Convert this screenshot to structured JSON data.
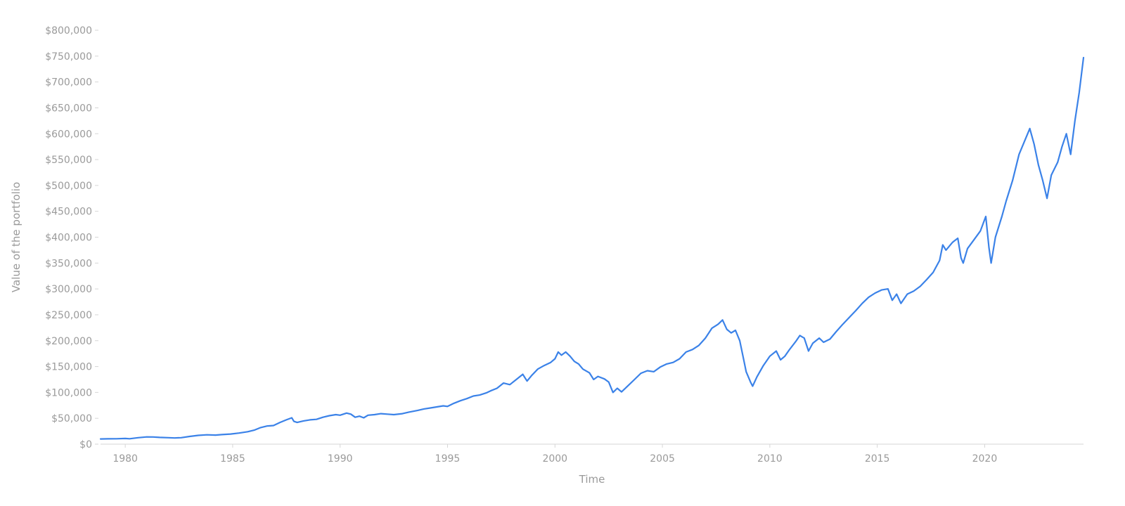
{
  "chart_data": {
    "type": "line",
    "title": "",
    "xlabel": "Time",
    "ylabel": "Value of the portfolio",
    "xlim": [
      1978.85,
      2024.6
    ],
    "ylim": [
      0,
      800000
    ],
    "grid": false,
    "legend": "none",
    "x_ticks": [
      {
        "value": 1980,
        "label": "1980"
      },
      {
        "value": 1985,
        "label": "1985"
      },
      {
        "value": 1990,
        "label": "1990"
      },
      {
        "value": 1995,
        "label": "1995"
      },
      {
        "value": 2000,
        "label": "2000"
      },
      {
        "value": 2005,
        "label": "2005"
      },
      {
        "value": 2010,
        "label": "2010"
      },
      {
        "value": 2015,
        "label": "2015"
      },
      {
        "value": 2020,
        "label": "2020"
      }
    ],
    "y_ticks": [
      {
        "value": 0,
        "label": "$0"
      },
      {
        "value": 50000,
        "label": "$50,000"
      },
      {
        "value": 100000,
        "label": "$100,000"
      },
      {
        "value": 150000,
        "label": "$150,000"
      },
      {
        "value": 200000,
        "label": "$200,000"
      },
      {
        "value": 250000,
        "label": "$250,000"
      },
      {
        "value": 300000,
        "label": "$300,000"
      },
      {
        "value": 350000,
        "label": "$350,000"
      },
      {
        "value": 400000,
        "label": "$400,000"
      },
      {
        "value": 450000,
        "label": "$450,000"
      },
      {
        "value": 500000,
        "label": "$500,000"
      },
      {
        "value": 550000,
        "label": "$550,000"
      },
      {
        "value": 600000,
        "label": "$600,000"
      },
      {
        "value": 650000,
        "label": "$650,000"
      },
      {
        "value": 700000,
        "label": "$700,000"
      },
      {
        "value": 750000,
        "label": "$750,000"
      },
      {
        "value": 800000,
        "label": "$800,000"
      }
    ],
    "series": [
      {
        "color": "#3b82e8",
        "points": [
          [
            1978.85,
            10000
          ],
          [
            1979.2,
            10300
          ],
          [
            1979.6,
            10500
          ],
          [
            1980.0,
            11000
          ],
          [
            1980.2,
            10500
          ],
          [
            1980.6,
            12500
          ],
          [
            1981.0,
            14000
          ],
          [
            1981.3,
            13800
          ],
          [
            1981.6,
            13000
          ],
          [
            1982.0,
            12500
          ],
          [
            1982.3,
            12000
          ],
          [
            1982.6,
            12500
          ],
          [
            1983.0,
            15000
          ],
          [
            1983.4,
            17000
          ],
          [
            1983.8,
            18000
          ],
          [
            1984.2,
            17500
          ],
          [
            1984.5,
            18500
          ],
          [
            1984.9,
            19500
          ],
          [
            1985.3,
            21500
          ],
          [
            1985.7,
            24000
          ],
          [
            1986.0,
            27000
          ],
          [
            1986.3,
            32000
          ],
          [
            1986.6,
            35000
          ],
          [
            1986.9,
            36000
          ],
          [
            1987.2,
            42000
          ],
          [
            1987.5,
            47000
          ],
          [
            1987.75,
            51000
          ],
          [
            1987.85,
            44000
          ],
          [
            1988.0,
            42000
          ],
          [
            1988.3,
            45000
          ],
          [
            1988.6,
            47000
          ],
          [
            1988.9,
            48000
          ],
          [
            1989.2,
            52000
          ],
          [
            1989.5,
            55000
          ],
          [
            1989.8,
            57000
          ],
          [
            1990.0,
            56000
          ],
          [
            1990.3,
            60000
          ],
          [
            1990.5,
            58000
          ],
          [
            1990.7,
            52000
          ],
          [
            1990.9,
            54000
          ],
          [
            1991.1,
            51000
          ],
          [
            1991.3,
            56000
          ],
          [
            1991.6,
            57000
          ],
          [
            1991.9,
            59000
          ],
          [
            1992.2,
            58000
          ],
          [
            1992.5,
            57000
          ],
          [
            1992.9,
            59000
          ],
          [
            1993.2,
            62000
          ],
          [
            1993.6,
            65000
          ],
          [
            1993.9,
            68000
          ],
          [
            1994.2,
            70000
          ],
          [
            1994.5,
            72000
          ],
          [
            1994.8,
            74000
          ],
          [
            1995.0,
            73000
          ],
          [
            1995.3,
            79000
          ],
          [
            1995.6,
            84000
          ],
          [
            1995.9,
            88000
          ],
          [
            1996.2,
            93000
          ],
          [
            1996.5,
            95000
          ],
          [
            1996.8,
            99000
          ],
          [
            1997.0,
            103000
          ],
          [
            1997.3,
            108000
          ],
          [
            1997.6,
            118000
          ],
          [
            1997.9,
            115000
          ],
          [
            1998.2,
            125000
          ],
          [
            1998.5,
            135000
          ],
          [
            1998.7,
            122000
          ],
          [
            1998.9,
            132000
          ],
          [
            1999.2,
            145000
          ],
          [
            1999.5,
            152000
          ],
          [
            1999.8,
            158000
          ],
          [
            2000.0,
            165000
          ],
          [
            2000.15,
            178000
          ],
          [
            2000.3,
            172000
          ],
          [
            2000.5,
            178000
          ],
          [
            2000.7,
            170000
          ],
          [
            2000.9,
            160000
          ],
          [
            2001.1,
            155000
          ],
          [
            2001.3,
            145000
          ],
          [
            2001.6,
            138000
          ],
          [
            2001.8,
            125000
          ],
          [
            2002.0,
            131000
          ],
          [
            2002.3,
            126000
          ],
          [
            2002.5,
            120000
          ],
          [
            2002.7,
            100000
          ],
          [
            2002.9,
            108000
          ],
          [
            2003.1,
            101000
          ],
          [
            2003.4,
            113000
          ],
          [
            2003.7,
            125000
          ],
          [
            2004.0,
            137000
          ],
          [
            2004.3,
            142000
          ],
          [
            2004.6,
            140000
          ],
          [
            2004.9,
            149000
          ],
          [
            2005.2,
            155000
          ],
          [
            2005.5,
            158000
          ],
          [
            2005.8,
            165000
          ],
          [
            2006.1,
            178000
          ],
          [
            2006.4,
            183000
          ],
          [
            2006.7,
            191000
          ],
          [
            2007.0,
            205000
          ],
          [
            2007.3,
            224000
          ],
          [
            2007.6,
            232000
          ],
          [
            2007.8,
            240000
          ],
          [
            2008.0,
            222000
          ],
          [
            2008.2,
            215000
          ],
          [
            2008.4,
            220000
          ],
          [
            2008.6,
            200000
          ],
          [
            2008.8,
            160000
          ],
          [
            2008.9,
            140000
          ],
          [
            2009.1,
            120000
          ],
          [
            2009.2,
            112000
          ],
          [
            2009.4,
            130000
          ],
          [
            2009.7,
            152000
          ],
          [
            2010.0,
            170000
          ],
          [
            2010.3,
            180000
          ],
          [
            2010.5,
            163000
          ],
          [
            2010.7,
            170000
          ],
          [
            2010.9,
            182000
          ],
          [
            2011.2,
            198000
          ],
          [
            2011.4,
            210000
          ],
          [
            2011.6,
            205000
          ],
          [
            2011.8,
            180000
          ],
          [
            2012.0,
            195000
          ],
          [
            2012.3,
            205000
          ],
          [
            2012.5,
            197000
          ],
          [
            2012.8,
            203000
          ],
          [
            2013.1,
            218000
          ],
          [
            2013.4,
            232000
          ],
          [
            2013.7,
            245000
          ],
          [
            2014.0,
            258000
          ],
          [
            2014.3,
            272000
          ],
          [
            2014.6,
            284000
          ],
          [
            2014.9,
            292000
          ],
          [
            2015.2,
            298000
          ],
          [
            2015.5,
            300000
          ],
          [
            2015.7,
            278000
          ],
          [
            2015.9,
            290000
          ],
          [
            2016.1,
            272000
          ],
          [
            2016.4,
            290000
          ],
          [
            2016.7,
            296000
          ],
          [
            2017.0,
            305000
          ],
          [
            2017.3,
            318000
          ],
          [
            2017.6,
            332000
          ],
          [
            2017.9,
            355000
          ],
          [
            2018.05,
            385000
          ],
          [
            2018.2,
            375000
          ],
          [
            2018.5,
            390000
          ],
          [
            2018.75,
            398000
          ],
          [
            2018.9,
            360000
          ],
          [
            2019.0,
            350000
          ],
          [
            2019.2,
            378000
          ],
          [
            2019.5,
            395000
          ],
          [
            2019.8,
            412000
          ],
          [
            2020.05,
            440000
          ],
          [
            2020.2,
            380000
          ],
          [
            2020.3,
            350000
          ],
          [
            2020.5,
            400000
          ],
          [
            2020.8,
            440000
          ],
          [
            2021.0,
            470000
          ],
          [
            2021.3,
            510000
          ],
          [
            2021.6,
            560000
          ],
          [
            2021.9,
            590000
          ],
          [
            2022.1,
            610000
          ],
          [
            2022.3,
            580000
          ],
          [
            2022.5,
            540000
          ],
          [
            2022.7,
            510000
          ],
          [
            2022.9,
            475000
          ],
          [
            2023.1,
            520000
          ],
          [
            2023.4,
            545000
          ],
          [
            2023.6,
            575000
          ],
          [
            2023.8,
            600000
          ],
          [
            2024.0,
            560000
          ],
          [
            2024.2,
            625000
          ],
          [
            2024.4,
            680000
          ],
          [
            2024.6,
            747000
          ]
        ]
      }
    ]
  }
}
